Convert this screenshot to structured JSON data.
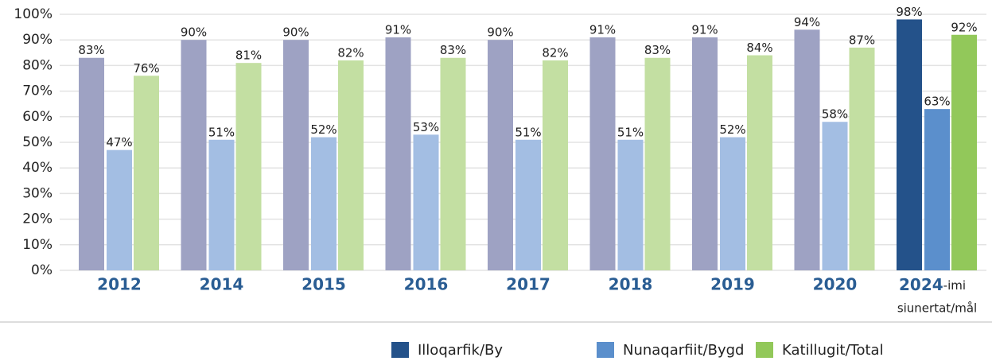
{
  "chart_data": {
    "type": "bar",
    "categories": [
      "2012",
      "2014",
      "2015",
      "2016",
      "2017",
      "2018",
      "2019",
      "2020",
      "2024"
    ],
    "category_note": [
      "-imi",
      "siunertat/mål"
    ],
    "series": [
      {
        "name": "Illoqarfik/By",
        "color": "#24528a",
        "past_color": "#9ea2c3",
        "values": [
          83,
          90,
          90,
          91,
          90,
          91,
          91,
          94,
          98
        ],
        "value_labels": [
          "83%",
          "90%",
          "90%",
          "91%",
          "90%",
          "91%",
          "91%",
          "94%",
          "98%"
        ]
      },
      {
        "name": "Nunaqarfiit/Bygd",
        "color": "#5b8fcc",
        "past_color": "#a3bee3",
        "values": [
          47,
          51,
          52,
          53,
          51,
          51,
          52,
          58,
          63
        ],
        "value_labels": [
          "47%",
          "51%",
          "52%",
          "53%",
          "51%",
          "51%",
          "52%",
          "58%",
          "63%"
        ]
      },
      {
        "name": "Katillugit/Total",
        "color": "#92c85a",
        "past_color": "#c3dfa2",
        "values": [
          76,
          81,
          82,
          83,
          82,
          83,
          84,
          87,
          92
        ],
        "value_labels": [
          "76%",
          "81%",
          "82%",
          "83%",
          "82%",
          "83%",
          "84%",
          "87%",
          "92%"
        ]
      }
    ],
    "ylim": [
      0,
      100
    ],
    "yticks": [
      {
        "value": 0,
        "label": "0%"
      },
      {
        "value": 10,
        "label": "10%"
      },
      {
        "value": 20,
        "label": "20%"
      },
      {
        "value": 30,
        "label": "30%"
      },
      {
        "value": 40,
        "label": "40%"
      },
      {
        "value": 50,
        "label": "50%"
      },
      {
        "value": 60,
        "label": "60%"
      },
      {
        "value": 70,
        "label": "70%"
      },
      {
        "value": 80,
        "label": "80%"
      },
      {
        "value": 90,
        "label": "90%"
      },
      {
        "value": 100,
        "label": "100%"
      }
    ],
    "grid": true,
    "legend": "bottom-right"
  }
}
